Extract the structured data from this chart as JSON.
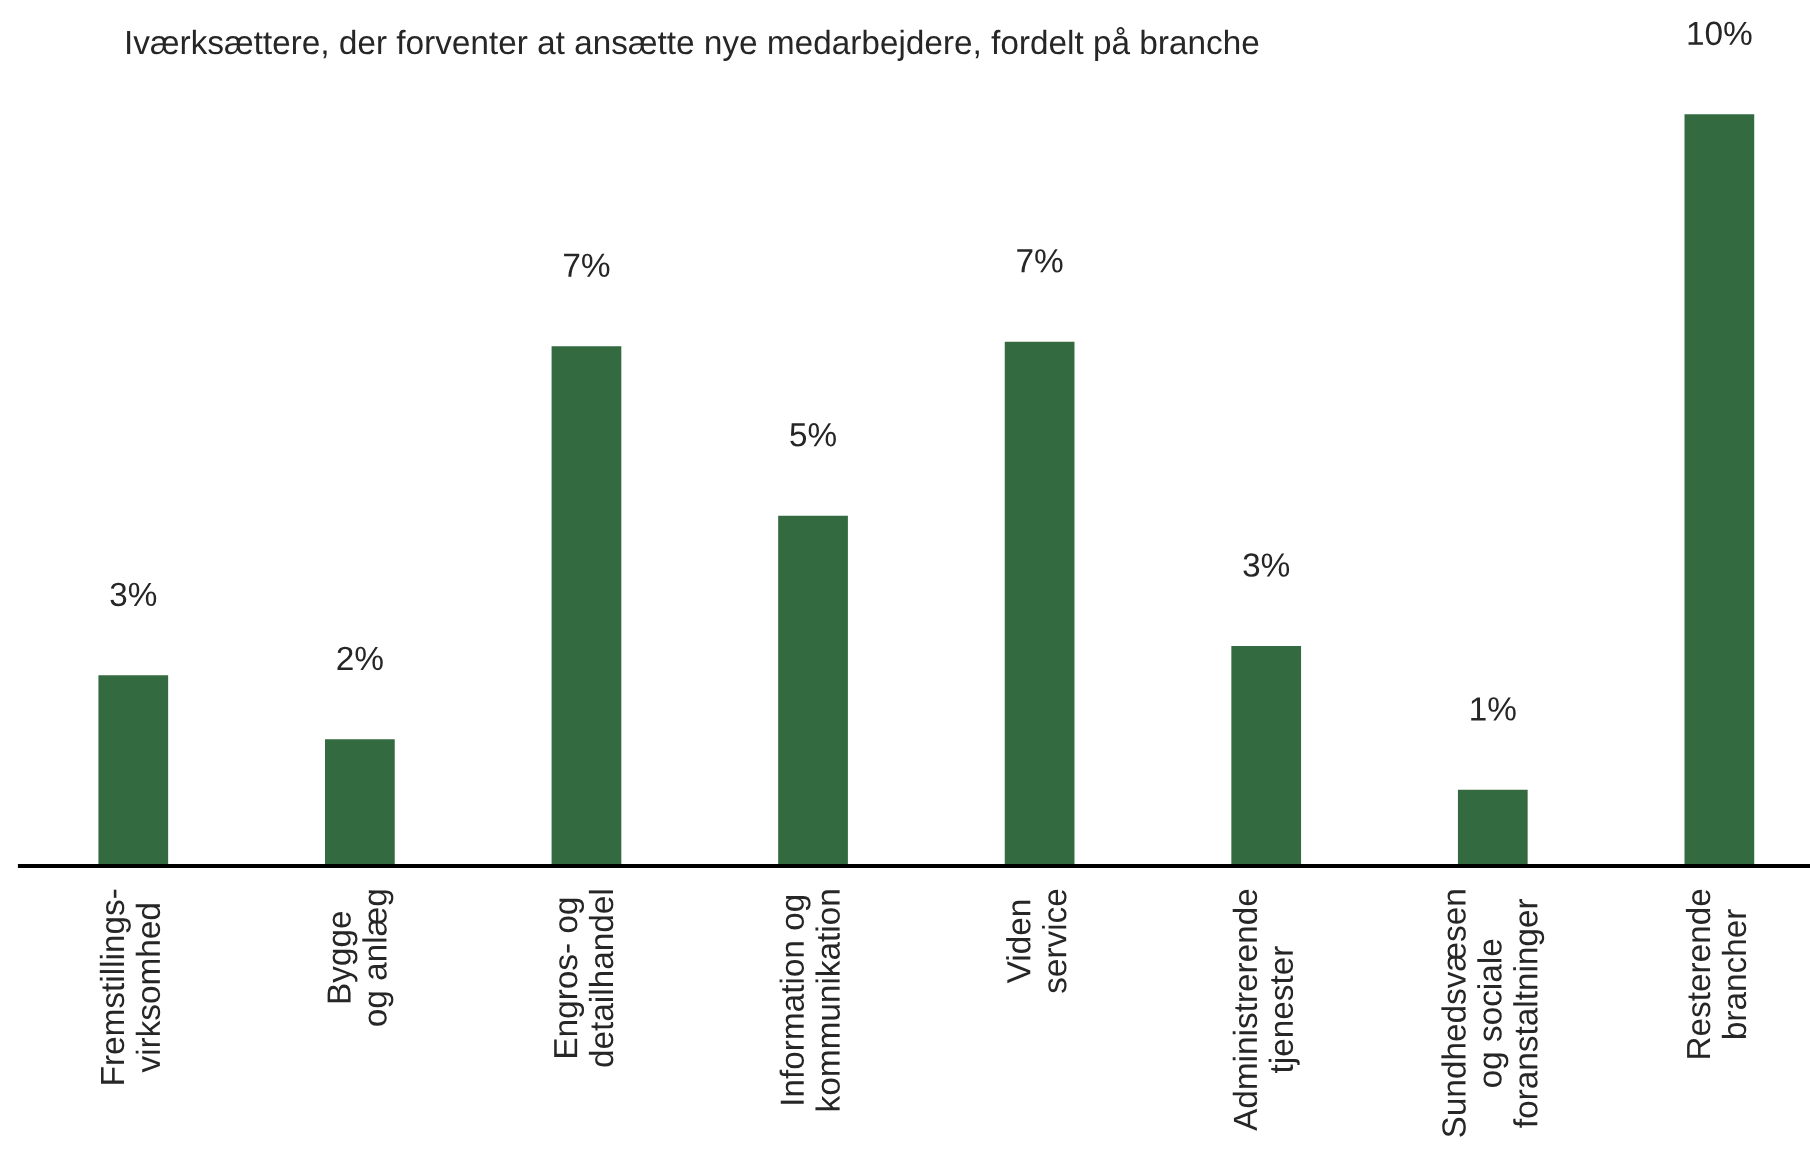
{
  "chart_data": {
    "type": "bar",
    "title": "Iværksættere, der forventer at ansætte nye medarbejdere, fordelt på branche",
    "categories": [
      "Fremstillings-\nvirksomhed",
      "Bygge\nog anlæg",
      "Engros- og\ndetailhandel",
      "Information og\nkommunikation",
      "Viden\nservice",
      "Administrerende\ntjenester",
      "Sundhedsvæsen\nog sociale\nforanstaltninger",
      "Resterende\nbrancher"
    ],
    "values": [
      2.55,
      1.7,
      6.92,
      4.67,
      6.98,
      2.94,
      1.03,
      10.0
    ],
    "value_labels": [
      "3%",
      "2%",
      "7%",
      "5%",
      "7%",
      "3%",
      "1%",
      "10%"
    ],
    "color": "#336a3f",
    "grid": false,
    "legend": false
  }
}
